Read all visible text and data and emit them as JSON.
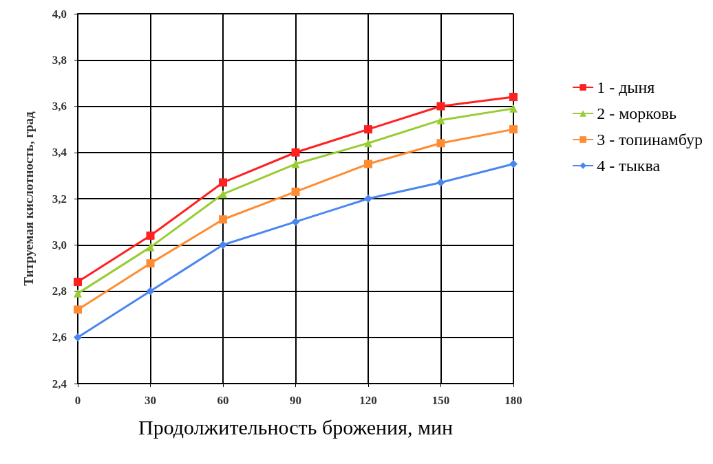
{
  "chart_data": {
    "type": "line",
    "xlabel": "Продолжительность брожения, мин",
    "ylabel": "Титруемая кислотность, град",
    "x": [
      0,
      30,
      60,
      90,
      120,
      150,
      180
    ],
    "xlim": [
      0,
      180
    ],
    "xticks": [
      0,
      30,
      60,
      90,
      120,
      150,
      180
    ],
    "ylim": [
      2.4,
      4.0
    ],
    "yticks": [
      {
        "value": 2.4,
        "label": "2,4"
      },
      {
        "value": 2.6,
        "label": "2,6"
      },
      {
        "value": 2.8,
        "label": "2,8"
      },
      {
        "value": 3.0,
        "label": "3,0"
      },
      {
        "value": 3.2,
        "label": "3,2"
      },
      {
        "value": 3.4,
        "label": "3,4"
      },
      {
        "value": 3.6,
        "label": "3,6"
      },
      {
        "value": 3.8,
        "label": "3,8"
      },
      {
        "value": 4.0,
        "label": "4,0"
      }
    ],
    "grid": true,
    "legend": "right",
    "series": [
      {
        "name": "1 - дыня",
        "color": "#ff2020",
        "marker": "square",
        "values": [
          2.84,
          3.04,
          3.27,
          3.4,
          3.5,
          3.6,
          3.64
        ]
      },
      {
        "name": "2 - морковь",
        "color": "#99cc33",
        "marker": "triangle",
        "values": [
          2.79,
          2.99,
          3.22,
          3.35,
          3.44,
          3.54,
          3.59
        ]
      },
      {
        "name": "3 - топинамбур",
        "color": "#ff8c33",
        "marker": "square",
        "values": [
          2.72,
          2.92,
          3.11,
          3.23,
          3.35,
          3.44,
          3.5
        ]
      },
      {
        "name": "4 - тыква",
        "color": "#4a86f0",
        "marker": "diamond",
        "values": [
          2.6,
          2.8,
          3.0,
          3.1,
          3.2,
          3.27,
          3.35
        ]
      }
    ]
  }
}
